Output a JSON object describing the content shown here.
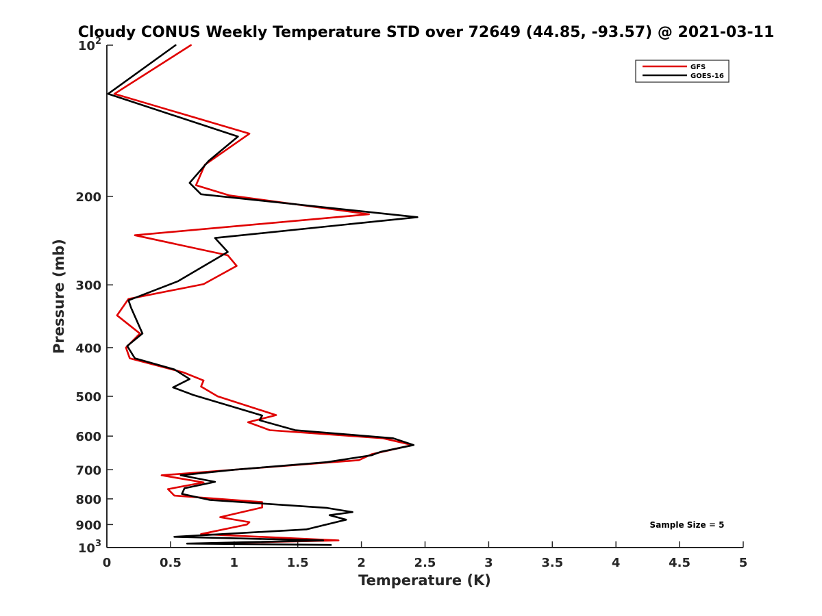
{
  "chart_data": {
    "type": "line",
    "title": "Cloudy CONUS Weekly Temperature STD over 72649 (44.85, -93.57) @ 2021-03-11",
    "xlabel": "Temperature (K)",
    "ylabel": "Pressure (mb)",
    "xlim": [
      0,
      5
    ],
    "ylim": [
      100,
      1000
    ],
    "yscale": "log",
    "yreversed": true,
    "grid": false,
    "legend_position": "top-right",
    "x_ticks": [
      "0",
      "0.5",
      "1",
      "1.5",
      "2",
      "2.5",
      "3",
      "3.5",
      "4",
      "4.5",
      "5"
    ],
    "x_tick_values": [
      0,
      0.5,
      1,
      1.5,
      2,
      2.5,
      3,
      3.5,
      4,
      4.5,
      5
    ],
    "y_ticks": [
      {
        "value": 100,
        "base": "10",
        "exp": "2",
        "text": ""
      },
      {
        "value": 200,
        "text": "200"
      },
      {
        "value": 300,
        "text": "300"
      },
      {
        "value": 400,
        "text": "400"
      },
      {
        "value": 500,
        "text": "500"
      },
      {
        "value": 600,
        "text": "600"
      },
      {
        "value": 700,
        "text": "700"
      },
      {
        "value": 800,
        "text": "800"
      },
      {
        "value": 900,
        "text": "900"
      },
      {
        "value": 1000,
        "base": "10",
        "exp": "3",
        "text": ""
      }
    ],
    "annotation": "Sample Size = 5",
    "series": [
      {
        "name": "GFS",
        "color": "#e00000",
        "points": [
          [
            0.66,
            100
          ],
          [
            0.06,
            125
          ],
          [
            1.12,
            150
          ],
          [
            0.77,
            173
          ],
          [
            0.7,
            190
          ],
          [
            0.96,
            199
          ],
          [
            2.06,
            217
          ],
          [
            0.22,
            239
          ],
          [
            0.95,
            262
          ],
          [
            1.02,
            275
          ],
          [
            0.76,
            299
          ],
          [
            0.17,
            320
          ],
          [
            0.08,
            345
          ],
          [
            0.26,
            375
          ],
          [
            0.15,
            400
          ],
          [
            0.18,
            420
          ],
          [
            0.6,
            448
          ],
          [
            0.76,
            465
          ],
          [
            0.74,
            478
          ],
          [
            0.87,
            500
          ],
          [
            1.33,
            545
          ],
          [
            1.11,
            563
          ],
          [
            1.28,
            584
          ],
          [
            2.17,
            606
          ],
          [
            2.4,
            625
          ],
          [
            2.08,
            652
          ],
          [
            1.98,
            670
          ],
          [
            0.43,
            718
          ],
          [
            0.76,
            742
          ],
          [
            0.48,
            765
          ],
          [
            0.53,
            788
          ],
          [
            1.22,
            812
          ],
          [
            1.22,
            832
          ],
          [
            0.89,
            870
          ],
          [
            1.12,
            890
          ],
          [
            1.1,
            900
          ],
          [
            0.74,
            940
          ],
          [
            1.82,
            968
          ],
          [
            0.7,
            982
          ]
        ]
      },
      {
        "name": "GOES-16",
        "color": "#000000",
        "points": [
          [
            0.54,
            100
          ],
          [
            0.01,
            125
          ],
          [
            1.03,
            152
          ],
          [
            0.8,
            170
          ],
          [
            0.65,
            188
          ],
          [
            0.74,
            198
          ],
          [
            2.44,
            220
          ],
          [
            0.85,
            242
          ],
          [
            0.95,
            258
          ],
          [
            0.56,
            295
          ],
          [
            0.17,
            322
          ],
          [
            0.19,
            333
          ],
          [
            0.28,
            375
          ],
          [
            0.16,
            397
          ],
          [
            0.22,
            420
          ],
          [
            0.53,
            442
          ],
          [
            0.65,
            462
          ],
          [
            0.52,
            480
          ],
          [
            0.68,
            497
          ],
          [
            1.22,
            546
          ],
          [
            1.2,
            558
          ],
          [
            1.48,
            584
          ],
          [
            2.25,
            606
          ],
          [
            2.41,
            625
          ],
          [
            2.15,
            645
          ],
          [
            2.08,
            655
          ],
          [
            1.73,
            676
          ],
          [
            1.0,
            700
          ],
          [
            0.58,
            718
          ],
          [
            0.85,
            740
          ],
          [
            0.61,
            762
          ],
          [
            0.59,
            782
          ],
          [
            0.81,
            804
          ],
          [
            1.73,
            834
          ],
          [
            1.93,
            850
          ],
          [
            1.75,
            862
          ],
          [
            1.88,
            880
          ],
          [
            1.57,
            920
          ],
          [
            0.53,
            952
          ],
          [
            1.7,
            968
          ],
          [
            0.63,
            982
          ],
          [
            1.76,
            988
          ]
        ]
      }
    ]
  }
}
